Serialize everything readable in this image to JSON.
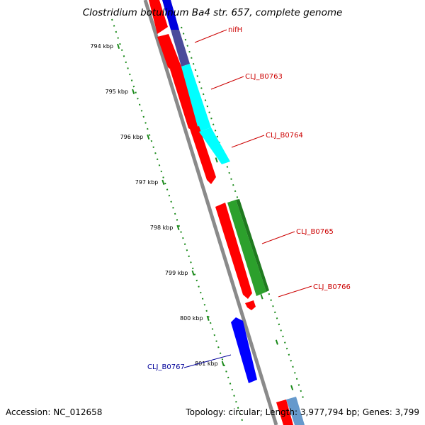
{
  "title": "Clostridium botulinum Ba4 str. 657, complete genome",
  "footer": {
    "accession": "Accession: NC_012658",
    "summary": "Topology: circular; Length: 3,977,794 bp; Genes: 3,799"
  },
  "colors": {
    "backbone": "#8a8a8a",
    "forward_gc": "#2e8b2e",
    "reverse_gc": "#2e8b2e",
    "label_red": "#cc0000",
    "label_blue": "#000099"
  },
  "ticks": [
    {
      "label": "794 kbp"
    },
    {
      "label": "795 kbp"
    },
    {
      "label": "796 kbp"
    },
    {
      "label": "797 kbp"
    },
    {
      "label": "798 kbp"
    },
    {
      "label": "799 kbp"
    },
    {
      "label": "800 kbp"
    },
    {
      "label": "801 kbp"
    }
  ],
  "genes": [
    {
      "name": "nifH",
      "strand": "reverse",
      "color": "#ff0000",
      "labeled": true
    },
    {
      "name": "CLJ_B0763",
      "strand": "reverse",
      "color": "#ff0000",
      "labeled": true
    },
    {
      "name": "CLJ_B0764",
      "strand": "reverse",
      "color": "#ff0000",
      "labeled": true
    },
    {
      "name": "CLJ_B0765",
      "strand": "reverse",
      "color": "#ff0000",
      "labeled": true
    },
    {
      "name": "CLJ_B0766",
      "strand": "reverse",
      "color": "#ff0000",
      "labeled": true
    },
    {
      "name": "CLJ_B0767",
      "strand": "forward",
      "color": "#0000ff",
      "labeled": true
    }
  ],
  "features": [
    {
      "kind": "cog",
      "color": "#0000dd"
    },
    {
      "kind": "cog",
      "color": "#4b4b9b"
    },
    {
      "kind": "cog",
      "color": "#00ffff"
    },
    {
      "kind": "cog",
      "color": "#2ca02c"
    },
    {
      "kind": "cog",
      "color": "#6699cc"
    }
  ]
}
